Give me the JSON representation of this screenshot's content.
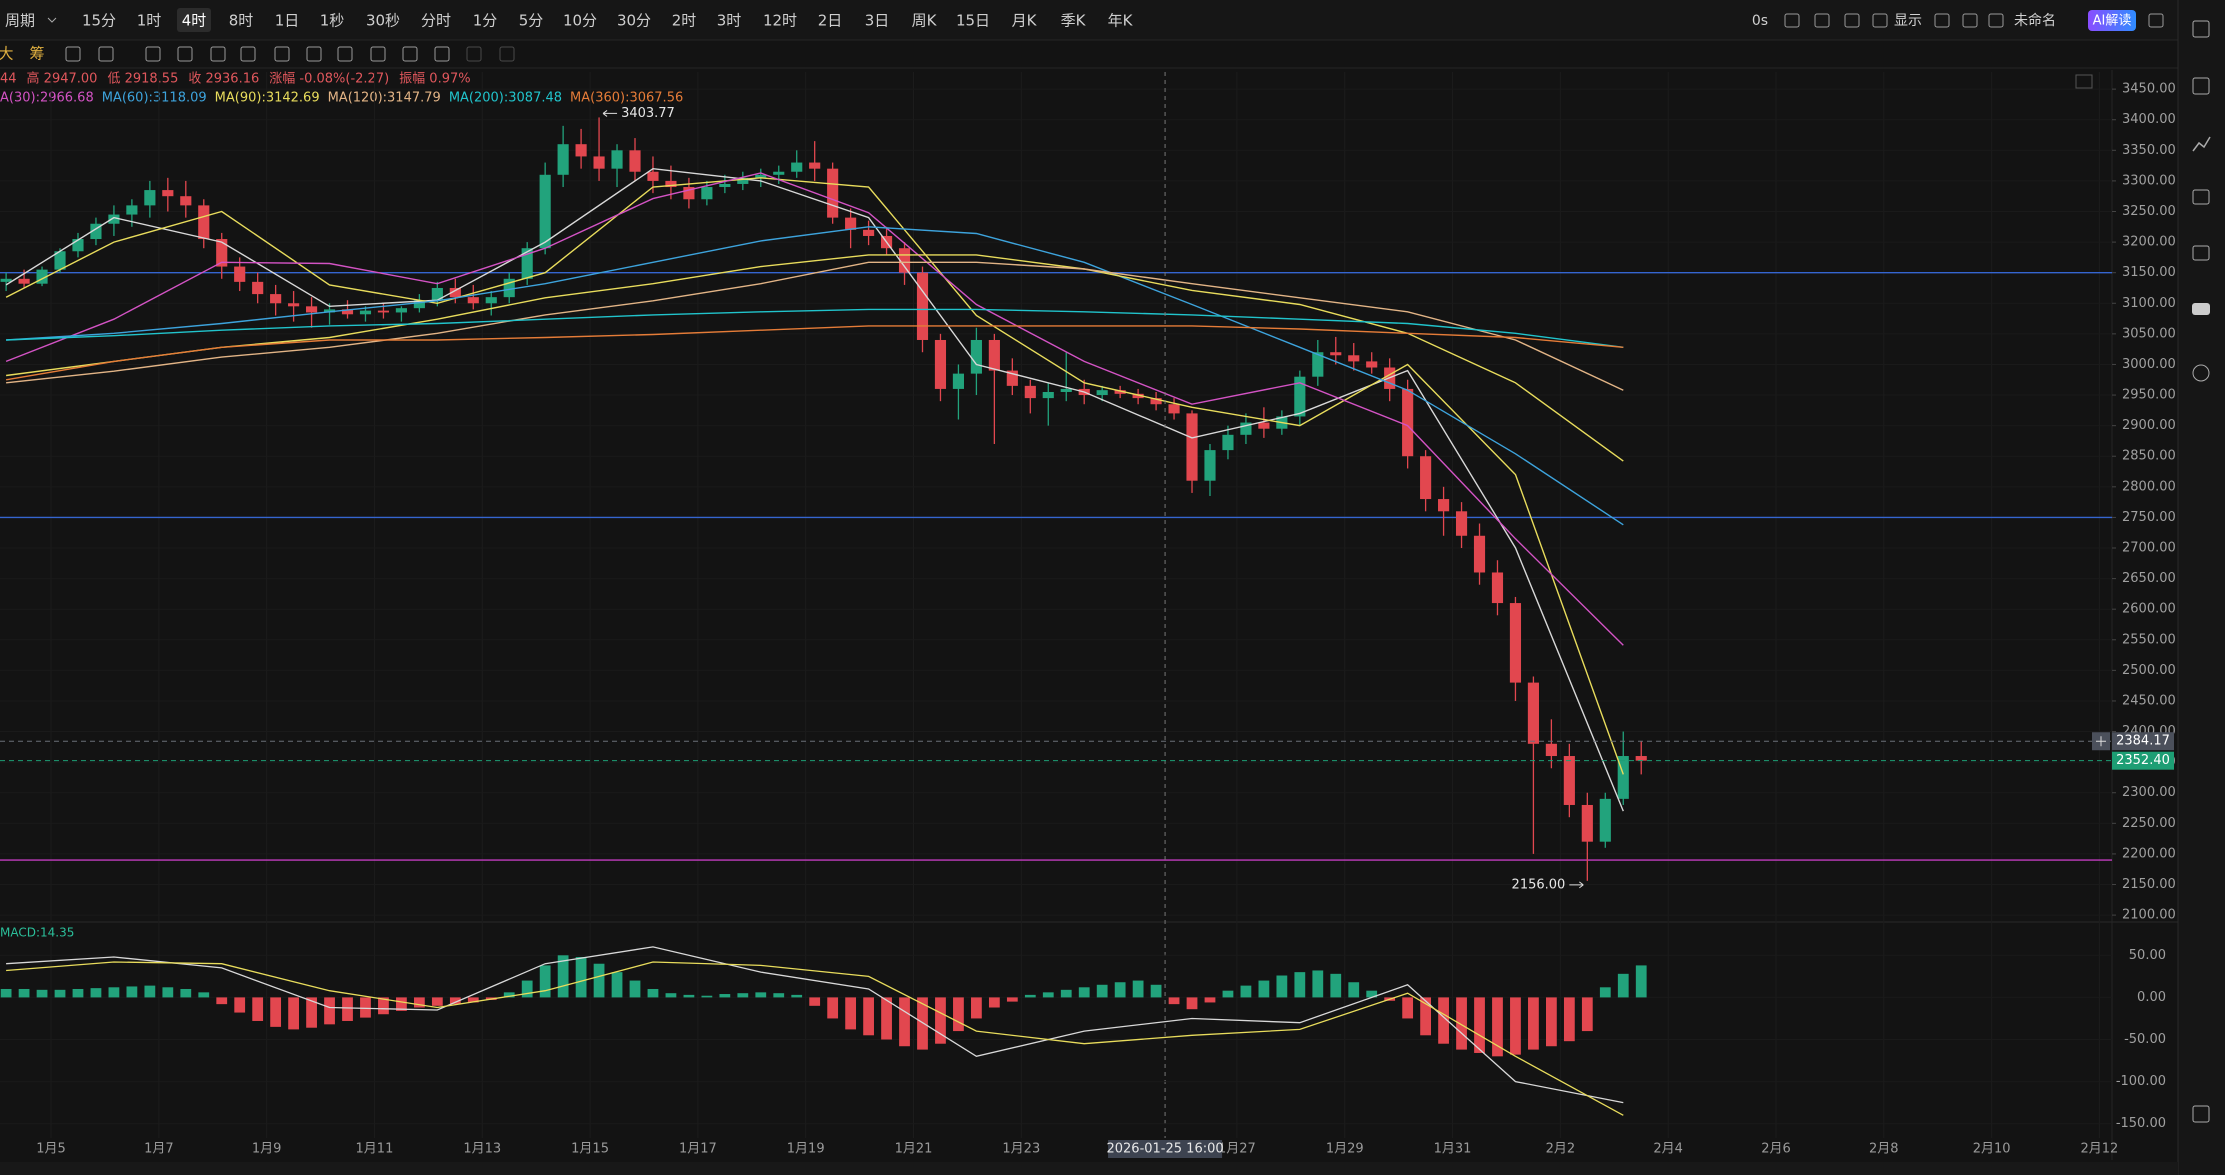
{
  "toolbar": {
    "periods": [
      "周期",
      "15分",
      "1时",
      "4时",
      "8时",
      "1日",
      "1秒",
      "30秒",
      "分时",
      "1分",
      "5分",
      "10分",
      "30分",
      "2时",
      "3时",
      "12时",
      "2日",
      "3日",
      "周K",
      "15日",
      "月K",
      "季K",
      "年K"
    ],
    "active_index": 3,
    "right": [
      "0s",
      "显示",
      "未命名",
      "AI解读"
    ],
    "tools": [
      "大",
      "筹"
    ]
  },
  "legend": {
    "ohlc": [
      "44",
      "高 2947.00",
      "低 2918.55",
      "收 2936.16",
      "涨幅 -0.08%(-2.27)",
      "振幅 0.97%"
    ],
    "ohlc_color": "#e0575c",
    "ma": [
      {
        "text": "A(30):2966.68",
        "color": "#d353c4"
      },
      {
        "text": "MA(60):3118.09",
        "color": "#3da3dc"
      },
      {
        "text": "MA(90):3142.69",
        "color": "#e8dc5c"
      },
      {
        "text": "MA(120):3147.79",
        "color": "#e2b486"
      },
      {
        "text": "MA(200):3087.48",
        "color": "#21c4cc"
      },
      {
        "text": "MA(360):3067.56",
        "color": "#e57c38"
      }
    ]
  },
  "chart_data": [
    {
      "type": "candlestick",
      "up_color": "#22a37c",
      "down_color": "#e2474f",
      "xlim": [
        -0.34,
        117.2
      ],
      "xticks": [
        {
          "value": 2.5,
          "label": "1月5"
        },
        {
          "value": 8.5,
          "label": "1月7"
        },
        {
          "value": 14.5,
          "label": "1月9"
        },
        {
          "value": 20.5,
          "label": "1月11"
        },
        {
          "value": 26.5,
          "label": "1月13"
        },
        {
          "value": 32.5,
          "label": "1月15"
        },
        {
          "value": 38.5,
          "label": "1月17"
        },
        {
          "value": 44.5,
          "label": "1月19"
        },
        {
          "value": 50.5,
          "label": "1月21"
        },
        {
          "value": 56.5,
          "label": "1月23"
        },
        {
          "value": 68.5,
          "label": "1月27"
        },
        {
          "value": 74.5,
          "label": "1月29"
        },
        {
          "value": 80.5,
          "label": "1月31"
        },
        {
          "value": 86.5,
          "label": "2月2"
        },
        {
          "value": 92.5,
          "label": "2月4"
        },
        {
          "value": 98.5,
          "label": "2月6"
        },
        {
          "value": 104.5,
          "label": "2月8"
        },
        {
          "value": 110.5,
          "label": "2月10"
        },
        {
          "value": 116.5,
          "label": "2月12"
        }
      ],
      "crosshair": {
        "x": 64.5,
        "label": "2026-01-25 16:00"
      },
      "ylim": [
        2092,
        3478
      ],
      "yticks": [
        {
          "value": 3450,
          "label": "3450.00"
        },
        {
          "value": 3400,
          "label": "3400.00"
        },
        {
          "value": 3350,
          "label": "3350.00"
        },
        {
          "value": 3300,
          "label": "3300.00"
        },
        {
          "value": 3250,
          "label": "3250.00"
        },
        {
          "value": 3200,
          "label": "3200.00"
        },
        {
          "value": 3150,
          "label": "3150.00"
        },
        {
          "value": 3100,
          "label": "3100.00"
        },
        {
          "value": 3050,
          "label": "3050.00"
        },
        {
          "value": 3000,
          "label": "3000.00"
        },
        {
          "value": 2950,
          "label": "2950.00"
        },
        {
          "value": 2900,
          "label": "2900.00"
        },
        {
          "value": 2850,
          "label": "2850.00"
        },
        {
          "value": 2800,
          "label": "2800.00"
        },
        {
          "value": 2750,
          "label": "2750.00"
        },
        {
          "value": 2700,
          "label": "2700.00"
        },
        {
          "value": 2650,
          "label": "2650.00"
        },
        {
          "value": 2600,
          "label": "2600.00"
        },
        {
          "value": 2550,
          "label": "2550.00"
        },
        {
          "value": 2500,
          "label": "2500.00"
        },
        {
          "value": 2450,
          "label": "2450.00"
        },
        {
          "value": 2400,
          "label": "2400.00"
        },
        {
          "value": 2350,
          "label": "2350.00"
        },
        {
          "value": 2300,
          "label": "2300.00"
        },
        {
          "value": 2250,
          "label": "2250.00"
        },
        {
          "value": 2200,
          "label": "2200.00"
        },
        {
          "value": 2150,
          "label": "2150.00"
        },
        {
          "value": 2100,
          "label": "2100.00"
        }
      ],
      "ohlc": [
        [
          3135,
          3150,
          3120,
          3140
        ],
        [
          3140,
          3155,
          3125,
          3132
        ],
        [
          3132,
          3160,
          3128,
          3155
        ],
        [
          3155,
          3190,
          3150,
          3185
        ],
        [
          3185,
          3215,
          3175,
          3205
        ],
        [
          3205,
          3240,
          3195,
          3230
        ],
        [
          3230,
          3260,
          3210,
          3245
        ],
        [
          3245,
          3270,
          3225,
          3260
        ],
        [
          3260,
          3300,
          3240,
          3285
        ],
        [
          3285,
          3305,
          3250,
          3275
        ],
        [
          3275,
          3300,
          3240,
          3260
        ],
        [
          3260,
          3270,
          3190,
          3205
        ],
        [
          3205,
          3215,
          3140,
          3160
        ],
        [
          3160,
          3175,
          3120,
          3135
        ],
        [
          3135,
          3150,
          3100,
          3115
        ],
        [
          3115,
          3130,
          3080,
          3100
        ],
        [
          3100,
          3120,
          3070,
          3095
        ],
        [
          3095,
          3110,
          3060,
          3085
        ],
        [
          3085,
          3100,
          3065,
          3090
        ],
        [
          3090,
          3105,
          3075,
          3082
        ],
        [
          3082,
          3095,
          3070,
          3088
        ],
        [
          3088,
          3100,
          3075,
          3085
        ],
        [
          3085,
          3095,
          3070,
          3092
        ],
        [
          3092,
          3115,
          3085,
          3105
        ],
        [
          3105,
          3135,
          3095,
          3125
        ],
        [
          3125,
          3140,
          3100,
          3110
        ],
        [
          3110,
          3130,
          3090,
          3100
        ],
        [
          3100,
          3120,
          3080,
          3110
        ],
        [
          3110,
          3150,
          3100,
          3140
        ],
        [
          3140,
          3200,
          3130,
          3190
        ],
        [
          3190,
          3330,
          3180,
          3310
        ],
        [
          3310,
          3390,
          3290,
          3360
        ],
        [
          3360,
          3385,
          3320,
          3340
        ],
        [
          3340,
          3403.77,
          3300,
          3320
        ],
        [
          3320,
          3360,
          3290,
          3350
        ],
        [
          3350,
          3370,
          3300,
          3315
        ],
        [
          3315,
          3340,
          3280,
          3300
        ],
        [
          3300,
          3325,
          3270,
          3290
        ],
        [
          3290,
          3305,
          3255,
          3270
        ],
        [
          3270,
          3300,
          3260,
          3290
        ],
        [
          3290,
          3310,
          3280,
          3295
        ],
        [
          3295,
          3315,
          3285,
          3305
        ],
        [
          3305,
          3320,
          3290,
          3310
        ],
        [
          3310,
          3325,
          3295,
          3315
        ],
        [
          3315,
          3350,
          3305,
          3330
        ],
        [
          3330,
          3365,
          3300,
          3320
        ],
        [
          3320,
          3330,
          3230,
          3240
        ],
        [
          3240,
          3255,
          3190,
          3220
        ],
        [
          3220,
          3235,
          3195,
          3210
        ],
        [
          3210,
          3225,
          3180,
          3190
        ],
        [
          3190,
          3200,
          3130,
          3150
        ],
        [
          3150,
          3160,
          3020,
          3040
        ],
        [
          3040,
          3050,
          2940,
          2960
        ],
        [
          2960,
          3000,
          2910,
          2985
        ],
        [
          2985,
          3060,
          2950,
          3040
        ],
        [
          3040,
          3050,
          2870,
          2990
        ],
        [
          2990,
          3010,
          2950,
          2965
        ],
        [
          2965,
          2975,
          2920,
          2945
        ],
        [
          2945,
          2970,
          2900,
          2955
        ],
        [
          2955,
          3020,
          2940,
          2960
        ],
        [
          2960,
          2975,
          2935,
          2950
        ],
        [
          2950,
          2965,
          2940,
          2958
        ],
        [
          2958,
          2965,
          2945,
          2952
        ],
        [
          2952,
          2960,
          2935,
          2945
        ],
        [
          2945,
          2955,
          2925,
          2935
        ],
        [
          2935,
          2945,
          2910,
          2920
        ],
        [
          2920,
          2925,
          2790,
          2810
        ],
        [
          2810,
          2870,
          2785,
          2860
        ],
        [
          2860,
          2900,
          2845,
          2885
        ],
        [
          2885,
          2920,
          2870,
          2905
        ],
        [
          2905,
          2930,
          2880,
          2895
        ],
        [
          2895,
          2925,
          2885,
          2915
        ],
        [
          2915,
          2990,
          2900,
          2980
        ],
        [
          2980,
          3040,
          2965,
          3020
        ],
        [
          3020,
          3045,
          3000,
          3015
        ],
        [
          3015,
          3035,
          2990,
          3005
        ],
        [
          3005,
          3020,
          2985,
          2995
        ],
        [
          2995,
          3010,
          2940,
          2960
        ],
        [
          2960,
          2975,
          2830,
          2850
        ],
        [
          2850,
          2860,
          2760,
          2780
        ],
        [
          2780,
          2800,
          2720,
          2760
        ],
        [
          2760,
          2775,
          2700,
          2720
        ],
        [
          2720,
          2740,
          2640,
          2660
        ],
        [
          2660,
          2680,
          2590,
          2610
        ],
        [
          2610,
          2620,
          2450,
          2480
        ],
        [
          2480,
          2490,
          2200,
          2380
        ],
        [
          2380,
          2420,
          2340,
          2360
        ],
        [
          2360,
          2380,
          2260,
          2280
        ],
        [
          2280,
          2300,
          2156,
          2220
        ],
        [
          2220,
          2300,
          2210,
          2290
        ],
        [
          2290,
          2400,
          2280,
          2360
        ],
        [
          2360,
          2384.17,
          2330,
          2352.4
        ]
      ],
      "line_x": [
        0,
        6,
        12,
        18,
        24,
        30,
        36,
        42,
        48,
        54,
        60,
        66,
        72,
        78,
        84,
        90
      ],
      "lines": [
        {
          "color": "#d8d8d8",
          "values": [
            3130,
            3240,
            3200,
            3095,
            3105,
            3200,
            3320,
            3300,
            3240,
            3000,
            2955,
            2880,
            2920,
            2990,
            2700,
            2270
          ]
        },
        {
          "color": "#e8dc5c",
          "values": [
            3110,
            3200,
            3250,
            3130,
            3100,
            3150,
            3290,
            3305,
            3290,
            3080,
            2970,
            2930,
            2900,
            3000,
            2820,
            2330
          ]
        },
        {
          "color": "#d353c4",
          "values": [
            3005,
            3074,
            3167,
            3165,
            3132,
            3190,
            3271,
            3313,
            3248,
            3098,
            3005,
            2935,
            2970,
            2900,
            2715,
            2541
          ]
        },
        {
          "color": "#3da3dc",
          "values": [
            3040,
            3051,
            3067,
            3086,
            3104,
            3132,
            3167,
            3202,
            3225,
            3214,
            3167,
            3098,
            3028,
            2958,
            2854,
            2738
          ]
        },
        {
          "color": "#e8dc5c",
          "values": [
            2982,
            3005,
            3028,
            3044,
            3074,
            3109,
            3132,
            3160,
            3179,
            3179,
            3156,
            3121,
            3098,
            3051,
            2970,
            2842
          ]
        },
        {
          "color": "#e2b486",
          "values": [
            2970,
            2989,
            3012,
            3028,
            3051,
            3081,
            3104,
            3132,
            3167,
            3167,
            3156,
            3132,
            3109,
            3086,
            3040,
            2958
          ]
        },
        {
          "color": "#21c4cc",
          "values": [
            3040,
            3047,
            3056,
            3063,
            3067,
            3074,
            3081,
            3086,
            3090,
            3090,
            3086,
            3081,
            3074,
            3067,
            3051,
            3028
          ]
        },
        {
          "color": "#e57c38",
          "values": [
            2975,
            3005,
            3028,
            3040,
            3040,
            3044,
            3049,
            3056,
            3063,
            3063,
            3063,
            3063,
            3058,
            3051,
            3044,
            3028
          ]
        }
      ],
      "hlines": [
        {
          "value": 3150,
          "color": "#3565d0"
        },
        {
          "value": 2750,
          "color": "#3565d0"
        },
        {
          "value": 2190,
          "color": "#c23cc0"
        }
      ],
      "price_tags": [
        {
          "value": 2384.17,
          "label": "2384.17",
          "color": "#4b505b"
        },
        {
          "value": 2352.4,
          "label": "2352.40",
          "color": "#1d9e74"
        }
      ],
      "annotations": [
        {
          "index": 33,
          "value": 3403.77,
          "label": "3403.77",
          "side": "right"
        },
        {
          "index": 88,
          "value": 2156,
          "label": "2156.00",
          "side": "left"
        }
      ]
    },
    {
      "type": "macd",
      "label": "MACD:14.35",
      "up_color": "#22a37c",
      "down_color": "#e2474f",
      "ylim": [
        -167,
        86
      ],
      "yticks": [
        {
          "value": 50,
          "label": "50.00"
        },
        {
          "value": 0,
          "label": "0.00"
        },
        {
          "value": -50,
          "label": "-50.00"
        },
        {
          "value": -100,
          "label": "-100.00"
        },
        {
          "value": -150,
          "label": "-150.00"
        }
      ],
      "hist": [
        10,
        10,
        9,
        9,
        10,
        11,
        12,
        13,
        14,
        12,
        10,
        6,
        -8,
        -18,
        -28,
        -35,
        -38,
        -36,
        -32,
        -28,
        -24,
        -20,
        -16,
        -12,
        -10,
        -8,
        -6,
        -3,
        6,
        20,
        38,
        50,
        48,
        40,
        30,
        20,
        10,
        5,
        3,
        2,
        4,
        5,
        6,
        5,
        3,
        -10,
        -25,
        -38,
        -45,
        -50,
        -58,
        -62,
        -55,
        -40,
        -25,
        -12,
        -5,
        3,
        6,
        9,
        12,
        15,
        18,
        20,
        15,
        -8,
        -14,
        -6,
        8,
        14,
        20,
        26,
        30,
        32,
        28,
        18,
        8,
        -4,
        -25,
        -45,
        -55,
        -62,
        -66,
        -70,
        -68,
        -62,
        -58,
        -52,
        -40,
        12,
        28,
        38
      ],
      "line_x": [
        0,
        6,
        12,
        18,
        24,
        30,
        36,
        42,
        48,
        54,
        60,
        66,
        72,
        78,
        84,
        90
      ],
      "dif": {
        "color": "#d8d8d8",
        "values": [
          40,
          48,
          35,
          -12,
          -15,
          40,
          60,
          30,
          10,
          -70,
          -40,
          -25,
          -30,
          15,
          -100,
          -125
        ]
      },
      "dea": {
        "color": "#e8dc5c",
        "values": [
          32,
          42,
          40,
          8,
          -12,
          8,
          42,
          38,
          25,
          -40,
          -55,
          -45,
          -38,
          5,
          -70,
          -140
        ]
      }
    }
  ]
}
